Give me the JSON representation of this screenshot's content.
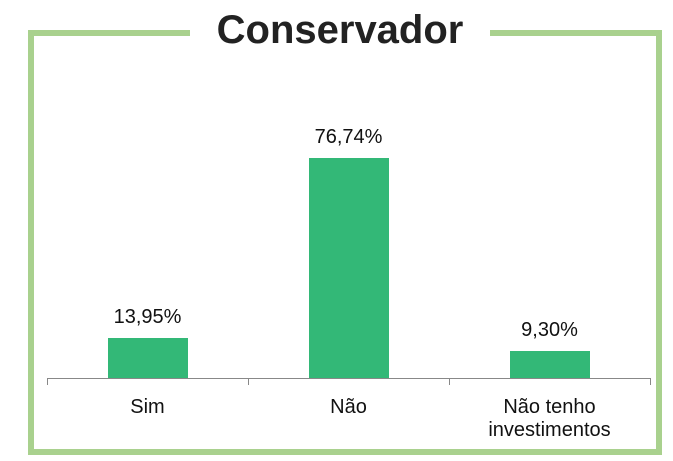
{
  "chart_data": {
    "type": "bar",
    "title": "Conservador",
    "categories": [
      "Sim",
      "Não",
      "Não tenho investimentos"
    ],
    "values": [
      13.95,
      76.74,
      9.3
    ],
    "value_labels": [
      "13,95%",
      "76,74%",
      "9,30%"
    ],
    "color": "#33b877"
  }
}
